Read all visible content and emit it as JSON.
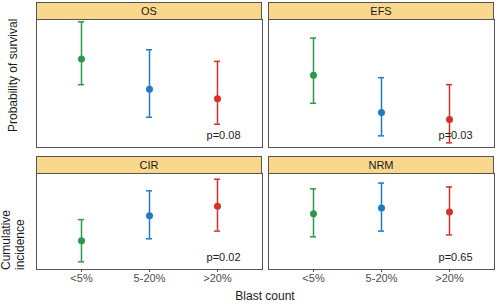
{
  "chart_data": {
    "type": "scatter",
    "xlabel": "Blast count",
    "categories": [
      "<5%",
      "5-20%",
      ">20%"
    ],
    "colors": [
      "#2a9a4a",
      "#1f7bc4",
      "#d7302a"
    ],
    "tick_labels": "x",
    "rows": [
      {
        "ylabel": "Probability of survival",
        "ylim": [
          0.15,
          0.7
        ],
        "panels": [
          {
            "title": "OS",
            "values": [
              0.53,
              0.4,
              0.36
            ],
            "lower": [
              0.42,
              0.28,
              0.25
            ],
            "upper": [
              0.69,
              0.57,
              0.52
            ],
            "annotation": "p=0.08"
          },
          {
            "title": "EFS",
            "values": [
              0.46,
              0.3,
              0.27
            ],
            "lower": [
              0.34,
              0.2,
              0.17
            ],
            "upper": [
              0.62,
              0.45,
              0.42
            ],
            "annotation": "p=0.03"
          }
        ]
      },
      {
        "ylabel": "Cumulative incidence",
        "ylim": [
          0.05,
          0.55
        ],
        "panels": [
          {
            "title": "CIR",
            "values": [
              0.2,
              0.33,
              0.38
            ],
            "lower": [
              0.09,
              0.21,
              0.25
            ],
            "upper": [
              0.31,
              0.46,
              0.52
            ],
            "annotation": "p=0.02"
          },
          {
            "title": "NRM",
            "values": [
              0.34,
              0.37,
              0.35
            ],
            "lower": [
              0.22,
              0.25,
              0.23
            ],
            "upper": [
              0.47,
              0.5,
              0.48
            ],
            "annotation": "p=0.65"
          }
        ]
      }
    ]
  }
}
